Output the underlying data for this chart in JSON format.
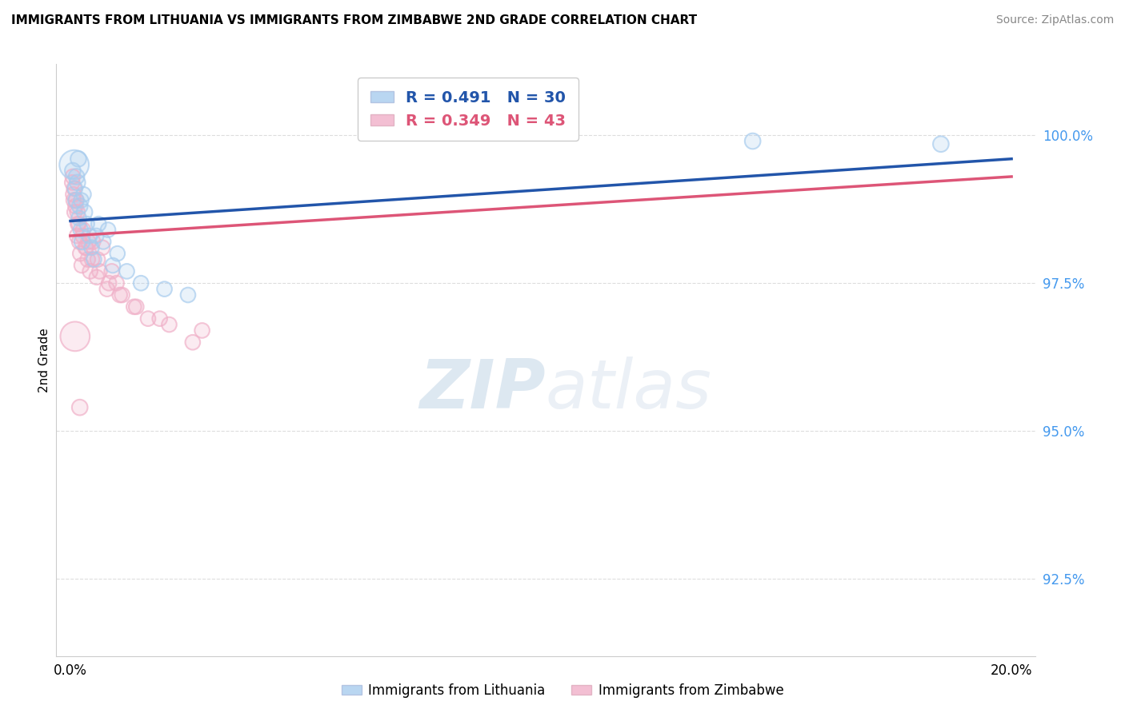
{
  "title": "IMMIGRANTS FROM LITHUANIA VS IMMIGRANTS FROM ZIMBABWE 2ND GRADE CORRELATION CHART",
  "source": "Source: ZipAtlas.com",
  "ylabel": "2nd Grade",
  "ylim": [
    91.2,
    101.2
  ],
  "xlim": [
    -0.3,
    20.5
  ],
  "yticks": [
    92.5,
    95.0,
    97.5,
    100.0
  ],
  "ytick_labels": [
    "92.5%",
    "95.0%",
    "97.5%",
    "100.0%"
  ],
  "legend_r_blue": "R = 0.491",
  "legend_n_blue": "N = 30",
  "legend_r_pink": "R = 0.349",
  "legend_n_pink": "N = 43",
  "legend_label_blue": "Immigrants from Lithuania",
  "legend_label_pink": "Immigrants from Zimbabwe",
  "blue_color": "#A8CCEE",
  "pink_color": "#F0B0C8",
  "blue_line_color": "#2255AA",
  "pink_line_color": "#DD5577",
  "watermark_zip": "ZIP",
  "watermark_atlas": "atlas",
  "lith_x": [
    0.05,
    0.1,
    0.12,
    0.15,
    0.18,
    0.2,
    0.22,
    0.25,
    0.28,
    0.3,
    0.35,
    0.4,
    0.45,
    0.5,
    0.55,
    0.6,
    0.7,
    0.8,
    0.9,
    1.0,
    1.2,
    1.5,
    2.0,
    2.5,
    0.08,
    0.13,
    0.17,
    0.23,
    14.5,
    18.5
  ],
  "lith_y": [
    99.4,
    99.1,
    98.9,
    99.2,
    98.6,
    98.8,
    98.4,
    98.2,
    99.0,
    98.7,
    98.5,
    98.3,
    98.1,
    97.9,
    98.3,
    98.5,
    98.2,
    98.4,
    97.8,
    98.0,
    97.7,
    97.5,
    97.4,
    97.3,
    99.5,
    99.3,
    99.6,
    98.9,
    99.9,
    99.85
  ],
  "lith_sizes": [
    200,
    180,
    200,
    200,
    180,
    200,
    180,
    200,
    180,
    200,
    180,
    180,
    180,
    180,
    180,
    180,
    180,
    180,
    180,
    180,
    180,
    180,
    180,
    180,
    200,
    200,
    200,
    180,
    200,
    200
  ],
  "lith_big": [
    0,
    24
  ],
  "zimb_x": [
    0.04,
    0.07,
    0.09,
    0.11,
    0.14,
    0.16,
    0.19,
    0.21,
    0.24,
    0.27,
    0.32,
    0.37,
    0.42,
    0.48,
    0.58,
    0.68,
    0.78,
    0.88,
    0.98,
    1.1,
    1.35,
    1.65,
    2.1,
    0.05,
    0.08,
    0.12,
    0.15,
    0.18,
    0.26,
    0.34,
    0.46,
    0.62,
    0.82,
    1.05,
    1.4,
    1.9,
    2.8,
    0.06,
    0.1,
    0.2,
    0.38,
    0.56,
    2.6
  ],
  "zimb_y": [
    99.2,
    98.9,
    98.7,
    98.8,
    98.3,
    98.5,
    98.2,
    98.0,
    97.8,
    98.4,
    98.1,
    97.9,
    97.7,
    98.2,
    97.9,
    98.1,
    97.4,
    97.7,
    97.5,
    97.3,
    97.1,
    96.9,
    96.8,
    99.3,
    99.1,
    98.9,
    98.7,
    98.5,
    98.3,
    98.1,
    97.9,
    97.7,
    97.5,
    97.3,
    97.1,
    96.9,
    96.7,
    99.0,
    96.6,
    95.4,
    98.2,
    97.6,
    96.5
  ],
  "zimb_sizes": [
    180,
    180,
    180,
    180,
    180,
    180,
    180,
    180,
    180,
    180,
    180,
    180,
    180,
    180,
    180,
    180,
    180,
    180,
    180,
    180,
    180,
    180,
    180,
    180,
    180,
    180,
    180,
    180,
    180,
    180,
    180,
    180,
    180,
    180,
    180,
    180,
    180,
    180,
    200,
    200,
    180,
    180,
    180
  ],
  "zimb_big": [
    38
  ],
  "lith_trend_x": [
    0.0,
    20.0
  ],
  "lith_trend_y": [
    98.55,
    99.6
  ],
  "zimb_trend_x": [
    0.0,
    20.0
  ],
  "zimb_trend_y": [
    98.3,
    99.3
  ]
}
